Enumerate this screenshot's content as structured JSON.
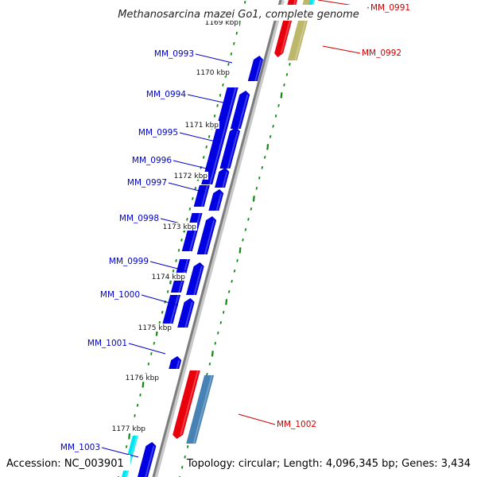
{
  "title": "Methanosarcina mazei Go1, complete genome",
  "footer": {
    "accession": "Accession: NC_003901",
    "topology": "Topology: circular; Length: 4,096,345 bp; Genes: 3,434"
  },
  "scale_ticks": [
    "1169 kbp",
    "1170 kbp",
    "1171 kbp",
    "1172 kbp",
    "1173 kbp",
    "1174 kbp",
    "1175 kbp",
    "1176 kbp",
    "1177 kbp"
  ],
  "genes": [
    {
      "name": "MM_0991",
      "strand": "forward",
      "color": "#e8000b"
    },
    {
      "name": "MM_0992",
      "strand": "forward",
      "color": "#e8000b"
    },
    {
      "name": "MM_0993",
      "strand": "reverse",
      "color": "#0000e0"
    },
    {
      "name": "MM_0994",
      "strand": "reverse",
      "color": "#0000e0"
    },
    {
      "name": "MM_0995",
      "strand": "reverse",
      "color": "#0000e0"
    },
    {
      "name": "MM_0996",
      "strand": "reverse",
      "color": "#0000e0"
    },
    {
      "name": "MM_0997",
      "strand": "reverse",
      "color": "#0000e0"
    },
    {
      "name": "MM_0998",
      "strand": "reverse",
      "color": "#0000e0"
    },
    {
      "name": "MM_0999",
      "strand": "reverse",
      "color": "#0000e0"
    },
    {
      "name": "MM_1000",
      "strand": "reverse",
      "color": "#0000e0"
    },
    {
      "name": "MM_1001",
      "strand": "reverse",
      "color": "#0000e0"
    },
    {
      "name": "MM_1002",
      "strand": "forward",
      "color": "#e8000b"
    },
    {
      "name": "MM_1003",
      "strand": "reverse",
      "color": "#0000e0"
    }
  ],
  "colors": {
    "reverse_label": "#0000c8",
    "forward_label": "#cc0000",
    "reverse_gene": "#0000e0",
    "forward_gene": "#e8000b",
    "khaki_feature": "#bdb76b",
    "steelblue_feature": "#4682b4",
    "cyan_feature": "#00e5ee",
    "backbone": "#808080",
    "tick": "#118811"
  }
}
